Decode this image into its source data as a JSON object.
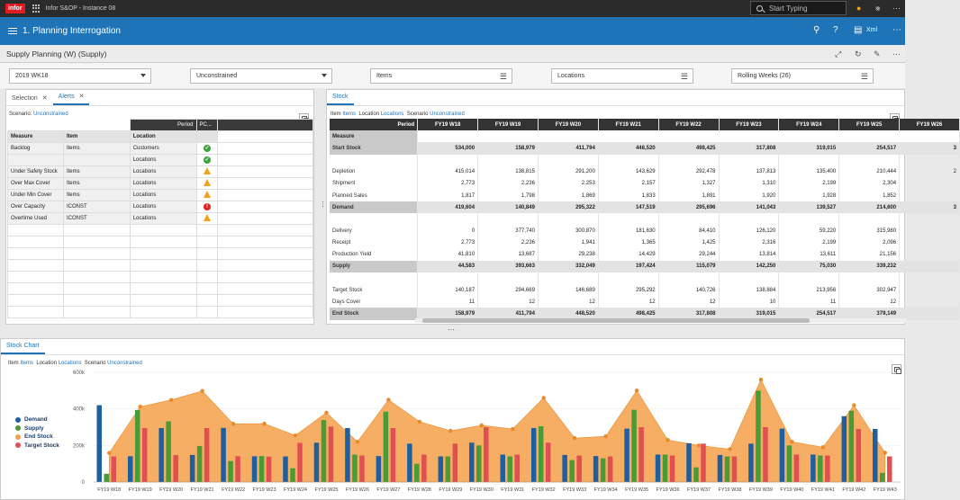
{
  "app": {
    "logo": "infor",
    "name": "Infor S&OP - Instance 08",
    "search_placeholder": "Start Typing"
  },
  "header": {
    "title": "1. Planning Interrogation",
    "xml_label": "Xml"
  },
  "subheader": {
    "title": "Supply Planning (W) (Supply)"
  },
  "filters": [
    {
      "value": "2019 WK18",
      "kind": "dropdown"
    },
    {
      "value": "Unconstrained",
      "kind": "dropdown"
    },
    {
      "value": "Items",
      "kind": "filter"
    },
    {
      "value": "Locations",
      "kind": "filter"
    },
    {
      "value": "Rolling Weeks (26)",
      "kind": "filter"
    }
  ],
  "left_panel": {
    "tabs": [
      {
        "label": "Selection"
      },
      {
        "label": "Alerts"
      }
    ],
    "scenario_label": "Scenario:",
    "scenario_value": "Unconstrained",
    "period_label": "Period",
    "pc_label": "PC...",
    "columns": [
      "Measure",
      "Item",
      "Location"
    ],
    "rows": [
      {
        "measure": "Backlog",
        "item": "Items",
        "location": "Customers",
        "status": "ok"
      },
      {
        "measure": "",
        "item": "",
        "location": "Locations",
        "status": "ok"
      },
      {
        "measure": "Under Safety Stock",
        "item": "Items",
        "location": "Locations",
        "status": "warn"
      },
      {
        "measure": "Over Max Cover",
        "item": "Items",
        "location": "Locations",
        "status": "warn"
      },
      {
        "measure": "Under Min Cover",
        "item": "Items",
        "location": "Locations",
        "status": "warn"
      },
      {
        "measure": "Over Capacity",
        "item": "ICONST",
        "location": "Locations",
        "status": "err"
      },
      {
        "measure": "Overtime Used",
        "item": "ICONST",
        "location": "Locations",
        "status": "warn"
      }
    ]
  },
  "stock_panel": {
    "tab": "Stock",
    "context": {
      "item_label": "Item",
      "item_value": "Items",
      "location_label": "Location",
      "location_value": "Locations",
      "scenario_label": "Scenario",
      "scenario_value": "Unconstrained"
    },
    "period_label": "Period",
    "measure_label": "Measure",
    "weeks": [
      "FY19 W18",
      "FY19 W19",
      "FY19 W20",
      "FY19 W21",
      "FY19 W22",
      "FY19 W23",
      "FY19 W24",
      "FY19 W25",
      "FY19 W26"
    ],
    "rows": [
      {
        "label": "Start Stock",
        "bold": true,
        "values": [
          "534,000",
          "158,979",
          "411,794",
          "448,520",
          "498,425",
          "317,808",
          "319,015",
          "254,517",
          "3"
        ]
      },
      {
        "label": "",
        "gap": true,
        "values": [
          "",
          "",
          "",
          "",
          "",
          "",
          "",
          "",
          ""
        ]
      },
      {
        "label": "Depletion",
        "values": [
          "415,014",
          "138,815",
          "291,200",
          "143,629",
          "292,478",
          "137,813",
          "135,400",
          "210,444",
          "2"
        ]
      },
      {
        "label": "Shipment",
        "values": [
          "2,773",
          "2,236",
          "2,253",
          "2,157",
          "1,327",
          "1,310",
          "2,199",
          "2,304",
          ""
        ]
      },
      {
        "label": "Planned Sales",
        "values": [
          "1,817",
          "1,798",
          "1,869",
          "1,833",
          "1,891",
          "1,920",
          "1,928",
          "1,852",
          ""
        ]
      },
      {
        "label": "Demand",
        "bold": true,
        "values": [
          "419,604",
          "140,849",
          "295,322",
          "147,519",
          "295,696",
          "141,043",
          "139,527",
          "214,600",
          "3"
        ]
      },
      {
        "label": "",
        "gap": true,
        "values": [
          "",
          "",
          "",
          "",
          "",
          "",
          "",
          "",
          ""
        ]
      },
      {
        "label": "Delivery",
        "values": [
          "0",
          "377,740",
          "300,870",
          "181,630",
          "84,410",
          "126,120",
          "59,220",
          "315,980",
          ""
        ]
      },
      {
        "label": "Receipt",
        "values": [
          "2,773",
          "2,236",
          "1,941",
          "1,365",
          "1,425",
          "2,316",
          "2,199",
          "2,096",
          ""
        ]
      },
      {
        "label": "Production Yield",
        "values": [
          "41,810",
          "13,687",
          "29,238",
          "14,429",
          "29,244",
          "13,814",
          "13,611",
          "21,156",
          ""
        ]
      },
      {
        "label": "Supply",
        "bold": true,
        "values": [
          "44,583",
          "393,663",
          "332,049",
          "197,424",
          "115,079",
          "142,250",
          "75,030",
          "339,232",
          ""
        ]
      },
      {
        "label": "",
        "gap": true,
        "values": [
          "",
          "",
          "",
          "",
          "",
          "",
          "",
          "",
          ""
        ]
      },
      {
        "label": "Target Stock",
        "values": [
          "140,187",
          "294,669",
          "146,689",
          "295,292",
          "140,726",
          "138,884",
          "213,956",
          "302,947",
          ""
        ]
      },
      {
        "label": "Days Cover",
        "values": [
          "11",
          "12",
          "12",
          "12",
          "12",
          "10",
          "11",
          "12",
          ""
        ]
      },
      {
        "label": "End Stock",
        "bold": true,
        "values": [
          "158,979",
          "411,794",
          "448,520",
          "498,425",
          "317,808",
          "319,015",
          "254,517",
          "379,149",
          ""
        ]
      }
    ]
  },
  "chart_panel": {
    "tab": "Stock Chart",
    "context": {
      "item_label": "Item",
      "item_value": "Items",
      "location_label": "Location",
      "location_value": "Locations",
      "scenario_label": "Scenario",
      "scenario_value": "Unconstrained"
    }
  },
  "chart_data": {
    "type": "bar",
    "title": "",
    "xlabel": "",
    "ylabel": "",
    "y_ticks": [
      "0",
      "200k",
      "400k",
      "600k"
    ],
    "ylim": [
      0,
      600000
    ],
    "grid": true,
    "legend_position": "left",
    "categories": [
      "FY19 W18",
      "FY19 W19",
      "FY19 W20",
      "FY19 W21",
      "FY19 W22",
      "FY19 W23",
      "FY19 W24",
      "FY19 W25",
      "FY19 W26",
      "FY19 W27",
      "FY19 W28",
      "FY19 W29",
      "FY19 W30",
      "FY19 W31",
      "FY19 W32",
      "FY19 W33",
      "FY19 W34",
      "FY19 W35",
      "FY19 W36",
      "FY19 W37",
      "FY19 W38",
      "FY19 W39",
      "FY19 W40",
      "FY19 W41",
      "FY19 W42",
      "FY19 W43"
    ],
    "series": [
      {
        "name": "Demand",
        "kind": "bar",
        "color": "#1f5fa0",
        "values": [
          420000,
          141000,
          295000,
          148000,
          296000,
          141000,
          140000,
          215000,
          295000,
          142000,
          210000,
          140000,
          215000,
          150000,
          295000,
          148000,
          142000,
          292000,
          150000,
          212000,
          148000,
          210000,
          292000,
          150000,
          360000,
          290000
        ]
      },
      {
        "name": "Supply",
        "kind": "bar",
        "color": "#4a9a35",
        "values": [
          45000,
          394000,
          332000,
          197000,
          115000,
          142000,
          75000,
          339000,
          150000,
          385000,
          100000,
          140000,
          200000,
          140000,
          305000,
          120000,
          130000,
          395000,
          150000,
          80000,
          140000,
          500000,
          200000,
          145000,
          390000,
          50000
        ]
      },
      {
        "name": "End Stock",
        "kind": "area",
        "color": "#f4a04a",
        "values": [
          159000,
          412000,
          449000,
          498000,
          318000,
          319000,
          255000,
          379000,
          220000,
          450000,
          330000,
          280000,
          310000,
          290000,
          460000,
          240000,
          250000,
          500000,
          230000,
          200000,
          180000,
          560000,
          220000,
          190000,
          420000,
          160000
        ]
      },
      {
        "name": "Target Stock",
        "kind": "bar",
        "color": "#e05050",
        "values": [
          140000,
          295000,
          147000,
          295000,
          141000,
          139000,
          214000,
          303000,
          145000,
          295000,
          150000,
          210000,
          300000,
          150000,
          215000,
          145000,
          140000,
          300000,
          145000,
          210000,
          140000,
          300000,
          150000,
          145000,
          290000,
          140000
        ]
      }
    ]
  }
}
